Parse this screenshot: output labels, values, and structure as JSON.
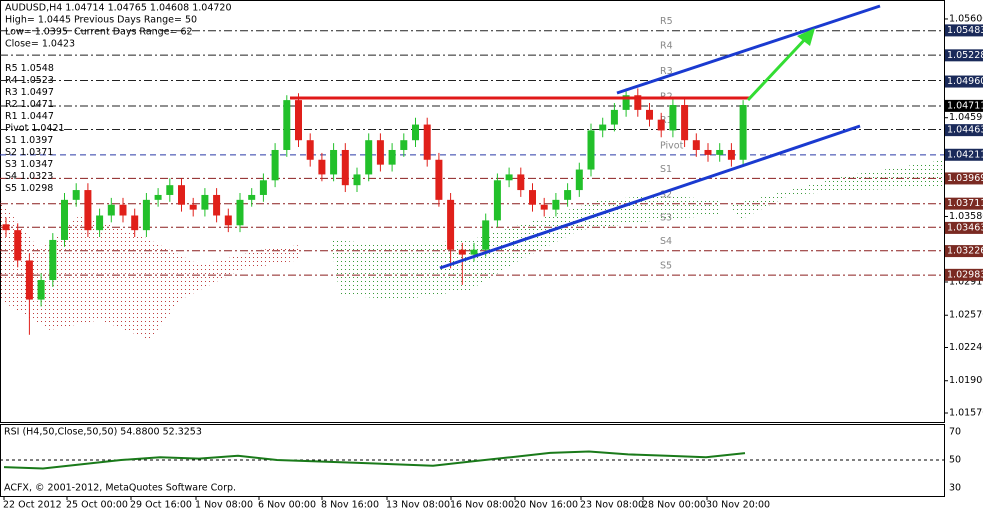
{
  "chart_data": {
    "type": "candlestick",
    "title": "AUDUSD,H4  1.04714 1.04765 1.04608 1.04720",
    "info": [
      "High= 1.0445",
      "Low= 1.0395",
      "Close= 1.0423"
    ],
    "ranges": [
      "Previous Days Range= 50",
      "Current Days Range= 62"
    ],
    "up_color": "#22c02a",
    "down_color": "#e0201a",
    "ylim": [
      1.01478,
      1.05753
    ],
    "yticks": [
      {
        "value": 1.056,
        "label": "1.05600"
      },
      {
        "value": 1.0459,
        "label": "1.04590"
      },
      {
        "value": 1.0358,
        "label": "1.03580"
      },
      {
        "value": 1.0291,
        "label": "1.02910"
      },
      {
        "value": 1.0257,
        "label": "1.02570"
      },
      {
        "value": 1.0224,
        "label": "1.02240"
      },
      {
        "value": 1.019,
        "label": "1.01900"
      },
      {
        "value": 1.0157,
        "label": "1.01570"
      }
    ],
    "axis_marks": [
      {
        "value": 1.05483,
        "color": "#1a2a5a"
      },
      {
        "value": 1.05228,
        "color": "#1a2a5a"
      },
      {
        "value": {
          "value": 1.0496,
          "label": "1.04960"
        },
        "color": "#1a2a5a"
      },
      {
        "value": 1.04711,
        "color": "#000000"
      },
      {
        "value": 1.04463,
        "color": "#1a2a5a"
      },
      {
        "value": 1.04211,
        "color": "#1a2a5a"
      },
      {
        "value": 1.03969,
        "color": "#7a2a22"
      },
      {
        "value": 1.03711,
        "color": "#7a2a22"
      },
      {
        "value": 1.03463,
        "color": "#7a2a22"
      },
      {
        "value": 1.03226,
        "color": "#7a2a22"
      },
      {
        "value": 1.02983,
        "color": "#7a2a22"
      }
    ],
    "levels": [
      {
        "name": "R5",
        "value": 1.0548,
        "color": "#222222"
      },
      {
        "name": "R4",
        "value": 1.0523,
        "color": "#222222"
      },
      {
        "name": "R3",
        "value": 1.0497,
        "color": "#222222"
      },
      {
        "name": "R2",
        "value": 1.0471,
        "color": "#222222"
      },
      {
        "name": "R1",
        "value": 1.0447,
        "color": "#222222"
      },
      {
        "name": "Pivot",
        "value": 1.0421,
        "color": "#2a3aa8"
      },
      {
        "name": "S1",
        "value": 1.0397,
        "color": "#8a1e1e"
      },
      {
        "name": "S2",
        "value": 1.0371,
        "color": "#8a1e1e"
      },
      {
        "name": "S3",
        "value": 1.0347,
        "color": "#8a1e1e"
      },
      {
        "name": "S4",
        "value": 1.0323,
        "color": "#8a1e1e"
      },
      {
        "name": "S5",
        "value": 1.0298,
        "color": "#8a1e1e"
      }
    ],
    "x_labels": [
      "22 Oct 2012",
      "25 Oct 00:00",
      "29 Oct 16:00",
      "1 Nov 08:00",
      "6 Nov 00:00",
      "8 Nov 16:00",
      "13 Nov 08:00",
      "16 Nov 08:00",
      "20 Nov 16:00",
      "23 Nov 08:00",
      "28 Nov 00:00",
      "30 Nov 20:00"
    ],
    "candles": [
      [
        1.035,
        1.0357,
        1.0337,
        1.0344
      ],
      [
        1.0344,
        1.0351,
        1.0306,
        1.0313
      ],
      [
        1.0313,
        1.032,
        1.0237,
        1.0273
      ],
      [
        1.0273,
        1.03,
        1.0266,
        1.0293
      ],
      [
        1.0293,
        1.0341,
        1.0286,
        1.0334
      ],
      [
        1.0334,
        1.0382,
        1.0327,
        1.0375
      ],
      [
        1.0375,
        1.0392,
        1.0368,
        1.0385
      ],
      [
        1.0385,
        1.0392,
        1.0337,
        1.0344
      ],
      [
        1.0344,
        1.0366,
        1.0337,
        1.0359
      ],
      [
        1.0359,
        1.0377,
        1.0352,
        1.037
      ],
      [
        1.037,
        1.0377,
        1.0352,
        1.0359
      ],
      [
        1.0359,
        1.0366,
        1.0337,
        1.0344
      ],
      [
        1.0344,
        1.0382,
        1.0337,
        1.0375
      ],
      [
        1.0375,
        1.0387,
        1.0368,
        1.038
      ],
      [
        1.038,
        1.0397,
        1.0373,
        1.039
      ],
      [
        1.039,
        1.0397,
        1.0363,
        1.037
      ],
      [
        1.037,
        1.0377,
        1.0358,
        1.0365
      ],
      [
        1.0365,
        1.0387,
        1.0358,
        1.038
      ],
      [
        1.038,
        1.0387,
        1.0352,
        1.0359
      ],
      [
        1.0359,
        1.0366,
        1.0342,
        1.0349
      ],
      [
        1.0349,
        1.0382,
        1.0342,
        1.0375
      ],
      [
        1.0375,
        1.0387,
        1.0368,
        1.038
      ],
      [
        1.038,
        1.0402,
        1.0373,
        1.0395
      ],
      [
        1.0395,
        1.0433,
        1.0388,
        1.0426
      ],
      [
        1.0426,
        1.0482,
        1.0419,
        1.0477
      ],
      [
        1.0477,
        1.0484,
        1.0429,
        1.0436
      ],
      [
        1.0436,
        1.0443,
        1.0409,
        1.0416
      ],
      [
        1.0416,
        1.0423,
        1.0394,
        1.0401
      ],
      [
        1.0401,
        1.0433,
        1.0394,
        1.0426
      ],
      [
        1.0426,
        1.0433,
        1.0383,
        1.039
      ],
      [
        1.039,
        1.0408,
        1.0383,
        1.0401
      ],
      [
        1.0401,
        1.0443,
        1.0394,
        1.0436
      ],
      [
        1.0436,
        1.0443,
        1.0404,
        1.0411
      ],
      [
        1.0411,
        1.0433,
        1.0404,
        1.0426
      ],
      [
        1.0426,
        1.0443,
        1.0419,
        1.0436
      ],
      [
        1.0436,
        1.0459,
        1.0429,
        1.0452
      ],
      [
        1.0452,
        1.0459,
        1.0409,
        1.0416
      ],
      [
        1.0416,
        1.0423,
        1.0368,
        1.0375
      ],
      [
        1.0375,
        1.0382,
        1.0305,
        1.0324
      ],
      [
        1.0324,
        1.0331,
        1.0288,
        1.0319
      ],
      [
        1.0319,
        1.0331,
        1.0312,
        1.0324
      ],
      [
        1.0324,
        1.0361,
        1.0317,
        1.0354
      ],
      [
        1.0354,
        1.0402,
        1.0347,
        1.0395
      ],
      [
        1.0395,
        1.0408,
        1.0388,
        1.0401
      ],
      [
        1.0401,
        1.0408,
        1.0378,
        1.0385
      ],
      [
        1.0385,
        1.0392,
        1.0363,
        1.037
      ],
      [
        1.037,
        1.0377,
        1.0358,
        1.0365
      ],
      [
        1.0365,
        1.0382,
        1.0358,
        1.0375
      ],
      [
        1.0375,
        1.0392,
        1.0368,
        1.0385
      ],
      [
        1.0385,
        1.0413,
        1.0378,
        1.0406
      ],
      [
        1.0406,
        1.0453,
        1.0399,
        1.0446
      ],
      [
        1.0446,
        1.0459,
        1.0439,
        1.0452
      ],
      [
        1.0452,
        1.0474,
        1.0445,
        1.0467
      ],
      [
        1.0467,
        1.0489,
        1.046,
        1.0482
      ],
      [
        1.0482,
        1.0489,
        1.046,
        1.0467
      ],
      [
        1.0467,
        1.0474,
        1.045,
        1.0457
      ],
      [
        1.0457,
        1.0464,
        1.0439,
        1.0446
      ],
      [
        1.0446,
        1.0479,
        1.0439,
        1.0472
      ],
      [
        1.0472,
        1.0479,
        1.0429,
        1.0436
      ],
      [
        1.0436,
        1.0443,
        1.0419,
        1.0426
      ],
      [
        1.0426,
        1.0433,
        1.0414,
        1.0421
      ],
      [
        1.0421,
        1.0433,
        1.0414,
        1.0426
      ],
      [
        1.0426,
        1.0433,
        1.0409,
        1.0416
      ],
      [
        1.0416,
        1.0477,
        1.0409,
        1.0472
      ]
    ],
    "rsi": {
      "title": "RSI (H4,50,Close,50,50) 54.8800 52.3253",
      "color": "#1a7a1a",
      "ylim": [
        24.5,
        74.8
      ],
      "yticks": [
        70,
        50,
        30
      ],
      "values": [
        45,
        44,
        47,
        50,
        52,
        51,
        53,
        50,
        49,
        48,
        47,
        46,
        49,
        52,
        55,
        56,
        54,
        53,
        52,
        54.88
      ]
    },
    "footer": "ACFX, © 2001-2012, MetaQuotes Software Corp."
  }
}
